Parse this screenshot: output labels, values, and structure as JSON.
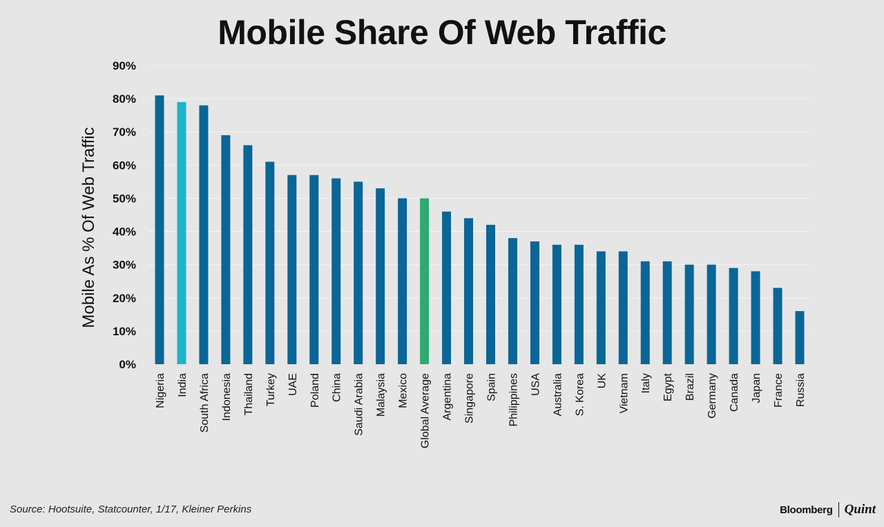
{
  "chart_data": {
    "type": "bar",
    "title": "Mobile Share Of Web Traffic",
    "xlabel": "",
    "ylabel": "Mobile As % Of Web Traffic",
    "ylim": [
      0,
      90
    ],
    "yticks": [
      0,
      10,
      20,
      30,
      40,
      50,
      60,
      70,
      80,
      90
    ],
    "ytick_labels": [
      "0%",
      "10%",
      "20%",
      "30%",
      "40%",
      "50%",
      "60%",
      "70%",
      "80%",
      "90%"
    ],
    "grid": true,
    "categories": [
      "Nigeria",
      "India",
      "South Africa",
      "Indonesia",
      "Thailand",
      "Turkey",
      "UAE",
      "Poland",
      "China",
      "Saudi Arabia",
      "Malaysia",
      "Mexico",
      "Global Average",
      "Argentina",
      "Singapore",
      "Spain",
      "Philippines",
      "USA",
      "Australia",
      "S. Korea",
      "UK",
      "Vietnam",
      "Italy",
      "Egypt",
      "Brazil",
      "Germany",
      "Canada",
      "Japan",
      "France",
      "Russia"
    ],
    "values": [
      81,
      79,
      78,
      69,
      66,
      61,
      57,
      57,
      56,
      55,
      53,
      50,
      50,
      46,
      44,
      42,
      38,
      37,
      36,
      36,
      34,
      34,
      31,
      31,
      30,
      30,
      29,
      28,
      23,
      16
    ],
    "highlights": {
      "India": "#1fb3cc",
      "Global Average": "#2eaa72"
    },
    "default_color": "#0a6697"
  },
  "footer": {
    "source": "Source: Hootsuite, Statcounter, 1/17, Kleiner Perkins",
    "brand_left": "Bloomberg",
    "brand_right": "Quint"
  },
  "colors": {
    "background": "#e6e6e6",
    "text": "#111111",
    "grid": "#f4f4f4"
  }
}
